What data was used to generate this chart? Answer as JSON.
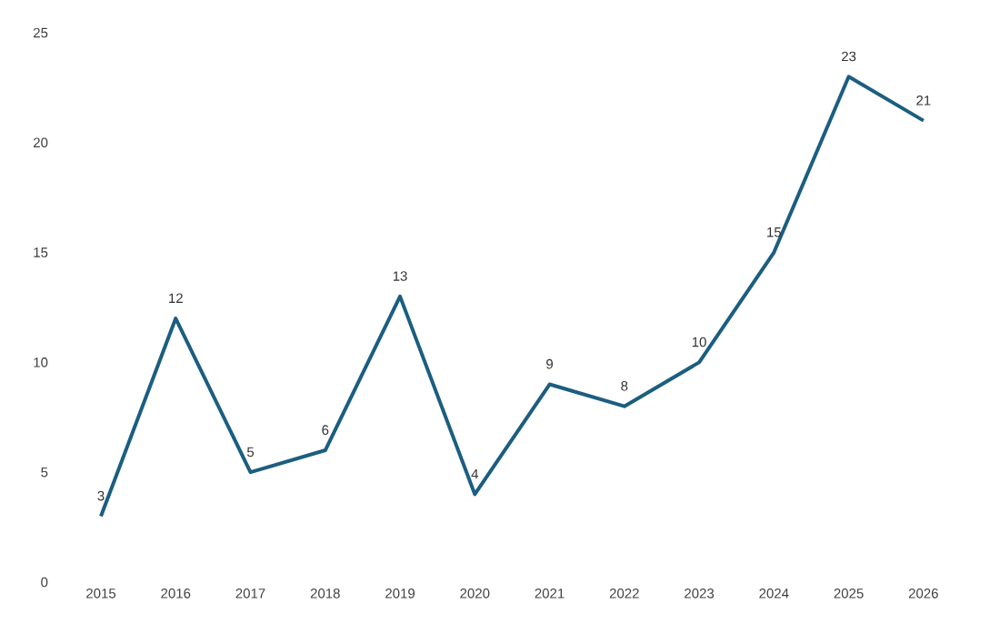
{
  "chart_data": {
    "type": "line",
    "categories": [
      "2015",
      "2016",
      "2017",
      "2018",
      "2019",
      "2020",
      "2021",
      "2022",
      "2023",
      "2024",
      "2025",
      "2026"
    ],
    "values": [
      3,
      12,
      5,
      6,
      13,
      4,
      9,
      8,
      10,
      15,
      23,
      21
    ],
    "color": "#1b5e80",
    "ylim": [
      0,
      25
    ],
    "yticks": [
      0,
      5,
      10,
      15,
      20,
      25
    ],
    "data_labels": true,
    "marker": "none",
    "line_style": "solid"
  }
}
